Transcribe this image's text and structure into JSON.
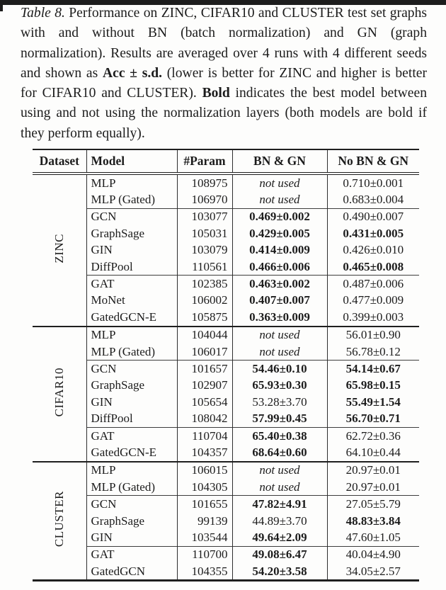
{
  "colors": {
    "ink": "#1c1c1c",
    "rule": "#1f1f1f",
    "thin_rule": "#3d3d3d",
    "background": "#fdfdfc",
    "artifact_bar": "#1d1d1d"
  },
  "caption": {
    "segments": [
      {
        "text": "Table 8.",
        "style": "italic"
      },
      {
        "text": " Performance on ZINC, CIFAR10 and CLUSTER test set graphs with and without BN (batch normalization) and GN (graph normalization). Results are averaged over 4 runs with 4 different seeds and shown as ",
        "style": "normal"
      },
      {
        "text": "Acc ± s.d.",
        "style": "bold"
      },
      {
        "text": " (lower is better for ZINC and higher is better for CIFAR10 and CLUSTER). ",
        "style": "normal"
      },
      {
        "text": "Bold",
        "style": "bold"
      },
      {
        "text": " indicates the best model between using and not using the normalization layers (both models are bold if they perform equally).",
        "style": "normal"
      }
    ]
  },
  "table": {
    "columns": [
      "Dataset",
      "Model",
      "#Param",
      "BN & GN",
      "No BN & GN"
    ],
    "sections": [
      {
        "dataset": "ZINC",
        "groups": [
          [
            {
              "model": "MLP",
              "param": "108975",
              "bn": {
                "text": "not used",
                "style": "italic"
              },
              "nobn": {
                "text": "0.710±0.001",
                "style": "normal"
              }
            },
            {
              "model": "MLP (Gated)",
              "param": "106970",
              "bn": {
                "text": "not used",
                "style": "italic"
              },
              "nobn": {
                "text": "0.683±0.004",
                "style": "normal"
              }
            }
          ],
          [
            {
              "model": "GCN",
              "param": "103077",
              "bn": {
                "text": "0.469±0.002",
                "style": "bold"
              },
              "nobn": {
                "text": "0.490±0.007",
                "style": "normal"
              }
            },
            {
              "model": "GraphSage",
              "param": "105031",
              "bn": {
                "text": "0.429±0.005",
                "style": "bold"
              },
              "nobn": {
                "text": "0.431±0.005",
                "style": "bold"
              }
            },
            {
              "model": "GIN",
              "param": "103079",
              "bn": {
                "text": "0.414±0.009",
                "style": "bold"
              },
              "nobn": {
                "text": "0.426±0.010",
                "style": "normal"
              }
            },
            {
              "model": "DiffPool",
              "param": "110561",
              "bn": {
                "text": "0.466±0.006",
                "style": "bold"
              },
              "nobn": {
                "text": "0.465±0.008",
                "style": "bold"
              }
            }
          ],
          [
            {
              "model": "GAT",
              "param": "102385",
              "bn": {
                "text": "0.463±0.002",
                "style": "bold"
              },
              "nobn": {
                "text": "0.487±0.006",
                "style": "normal"
              }
            },
            {
              "model": "MoNet",
              "param": "106002",
              "bn": {
                "text": "0.407±0.007",
                "style": "bold"
              },
              "nobn": {
                "text": "0.477±0.009",
                "style": "normal"
              }
            },
            {
              "model": "GatedGCN-E",
              "param": "105875",
              "bn": {
                "text": "0.363±0.009",
                "style": "bold"
              },
              "nobn": {
                "text": "0.399±0.003",
                "style": "normal"
              }
            }
          ]
        ]
      },
      {
        "dataset": "CIFAR10",
        "groups": [
          [
            {
              "model": "MLP",
              "param": "104044",
              "bn": {
                "text": "not used",
                "style": "italic"
              },
              "nobn": {
                "text": "56.01±0.90",
                "style": "normal"
              }
            },
            {
              "model": "MLP (Gated)",
              "param": "106017",
              "bn": {
                "text": "not used",
                "style": "italic"
              },
              "nobn": {
                "text": "56.78±0.12",
                "style": "normal"
              }
            }
          ],
          [
            {
              "model": "GCN",
              "param": "101657",
              "bn": {
                "text": "54.46±0.10",
                "style": "bold"
              },
              "nobn": {
                "text": "54.14±0.67",
                "style": "bold"
              }
            },
            {
              "model": "GraphSage",
              "param": "102907",
              "bn": {
                "text": "65.93±0.30",
                "style": "bold"
              },
              "nobn": {
                "text": "65.98±0.15",
                "style": "bold"
              }
            },
            {
              "model": "GIN",
              "param": "105654",
              "bn": {
                "text": "53.28±3.70",
                "style": "normal"
              },
              "nobn": {
                "text": "55.49±1.54",
                "style": "bold"
              }
            },
            {
              "model": "DiffPool",
              "param": "108042",
              "bn": {
                "text": "57.99±0.45",
                "style": "bold"
              },
              "nobn": {
                "text": "56.70±0.71",
                "style": "bold"
              }
            }
          ],
          [
            {
              "model": "GAT",
              "param": "110704",
              "bn": {
                "text": "65.40±0.38",
                "style": "bold"
              },
              "nobn": {
                "text": "62.72±0.36",
                "style": "normal"
              }
            },
            {
              "model": "GatedGCN-E",
              "param": "104357",
              "bn": {
                "text": "68.64±0.60",
                "style": "bold"
              },
              "nobn": {
                "text": "64.10±0.44",
                "style": "normal"
              }
            }
          ]
        ]
      },
      {
        "dataset": "CLUSTER",
        "groups": [
          [
            {
              "model": "MLP",
              "param": "106015",
              "bn": {
                "text": "not used",
                "style": "italic"
              },
              "nobn": {
                "text": "20.97±0.01",
                "style": "normal"
              }
            },
            {
              "model": "MLP (Gated)",
              "param": "104305",
              "bn": {
                "text": "not used",
                "style": "italic"
              },
              "nobn": {
                "text": "20.97±0.01",
                "style": "normal"
              }
            }
          ],
          [
            {
              "model": "GCN",
              "param": "101655",
              "bn": {
                "text": "47.82±4.91",
                "style": "bold"
              },
              "nobn": {
                "text": "27.05±5.79",
                "style": "normal"
              }
            },
            {
              "model": "GraphSage",
              "param": "99139",
              "bn": {
                "text": "44.89±3.70",
                "style": "normal"
              },
              "nobn": {
                "text": "48.83±3.84",
                "style": "bold"
              }
            },
            {
              "model": "GIN",
              "param": "103544",
              "bn": {
                "text": "49.64±2.09",
                "style": "bold"
              },
              "nobn": {
                "text": "47.60±1.05",
                "style": "normal"
              }
            }
          ],
          [
            {
              "model": "GAT",
              "param": "110700",
              "bn": {
                "text": "49.08±6.47",
                "style": "bold"
              },
              "nobn": {
                "text": "40.04±4.90",
                "style": "normal"
              }
            },
            {
              "model": "GatedGCN",
              "param": "104355",
              "bn": {
                "text": "54.20±3.58",
                "style": "bold"
              },
              "nobn": {
                "text": "34.05±2.57",
                "style": "normal"
              }
            }
          ]
        ]
      }
    ]
  }
}
